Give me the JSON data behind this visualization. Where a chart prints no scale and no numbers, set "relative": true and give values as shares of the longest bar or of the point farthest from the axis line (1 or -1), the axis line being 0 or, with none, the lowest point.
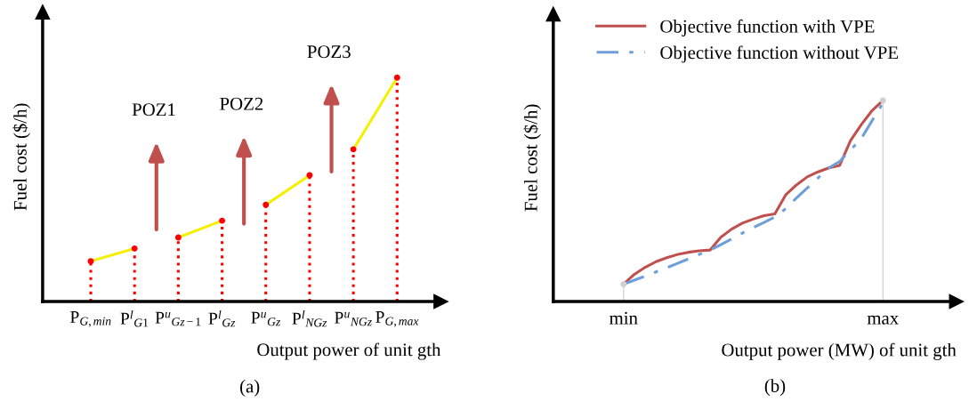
{
  "chart_data": [
    {
      "type": "line",
      "relative": true,
      "ylabel": "Fuel cost ($/h)",
      "xlabel": "Output power of unit gth",
      "categories": [
        "P$_{G,min}$",
        "P$^{l}$$_{G1}$",
        "P$^{u}$$_{Gz−1}$",
        "P$^{l}$$_{Gz}$",
        "P$^{u}$$_{Gz}$",
        "P$^{l}$$_{NGz}$",
        "P$^{u}$$_{NGz}$",
        "P$_{G,max}$"
      ],
      "series": [
        {
          "color": "#f5f000",
          "line_style": "solid",
          "values": [
            0.18,
            0.237,
            null,
            null,
            null,
            null,
            null,
            null
          ]
        },
        {
          "color": "#f5f000",
          "line_style": "solid",
          "values": [
            null,
            null,
            0.286,
            0.361,
            null,
            null,
            null,
            null
          ]
        },
        {
          "color": "#f5f000",
          "line_style": "solid",
          "values": [
            null,
            null,
            null,
            null,
            0.432,
            0.564,
            null,
            null
          ]
        },
        {
          "color": "#f5f000",
          "line_style": "solid",
          "values": [
            null,
            null,
            null,
            null,
            null,
            null,
            0.68,
            1.0
          ]
        },
        {
          "type": "lollipop",
          "marker": "circle",
          "color": "#ff0000",
          "line_style": "dotted",
          "values": [
            0.18,
            0.237,
            0.286,
            0.361,
            0.432,
            0.564,
            0.68,
            1.0
          ]
        }
      ],
      "annotations": [
        "POZ1",
        "POZ2",
        "POZ3",
        "(a)"
      ]
    },
    {
      "type": "line",
      "relative": true,
      "ylabel": "Fuel cost ($/h)",
      "xlabel": "Output power (MW) of unit gth",
      "categories": [
        "min",
        null,
        null,
        null,
        null,
        null,
        null,
        null,
        null,
        null,
        null,
        null,
        null,
        null,
        null,
        null,
        null,
        null,
        null,
        null,
        null,
        null,
        null,
        null,
        "max"
      ],
      "legend": "top left",
      "series": [
        {
          "name": "Objective function with VPE",
          "color": "#c0504d",
          "line_style": "solid",
          "values": [
            0.086,
            0.135,
            0.17,
            0.198,
            0.218,
            0.234,
            0.245,
            0.252,
            0.256,
            0.32,
            0.36,
            0.39,
            0.41,
            0.427,
            0.436,
            0.53,
            0.58,
            0.62,
            0.645,
            0.665,
            0.677,
            0.8,
            0.88,
            0.95,
            1.0
          ]
        },
        {
          "name": "Objective function without VPE",
          "color": "#6f9fd8",
          "line_style": "dashdot",
          "values": [
            0.086,
            0.106,
            0.126,
            0.147,
            0.168,
            0.19,
            0.212,
            0.234,
            0.255,
            0.283,
            0.311,
            0.34,
            0.368,
            0.393,
            0.42,
            0.462,
            0.515,
            0.565,
            0.615,
            0.665,
            0.697,
            0.754,
            0.811,
            0.9,
            0.987
          ]
        },
        {
          "type": "lollipop",
          "marker": "circle",
          "color": "#d0d0d0",
          "line_style": "solid",
          "values": [
            0.086,
            null,
            null,
            null,
            null,
            null,
            null,
            null,
            null,
            null,
            null,
            null,
            null,
            null,
            null,
            null,
            null,
            null,
            null,
            null,
            null,
            null,
            null,
            null,
            1.0
          ]
        }
      ],
      "annotations": [
        "(b)"
      ]
    }
  ]
}
